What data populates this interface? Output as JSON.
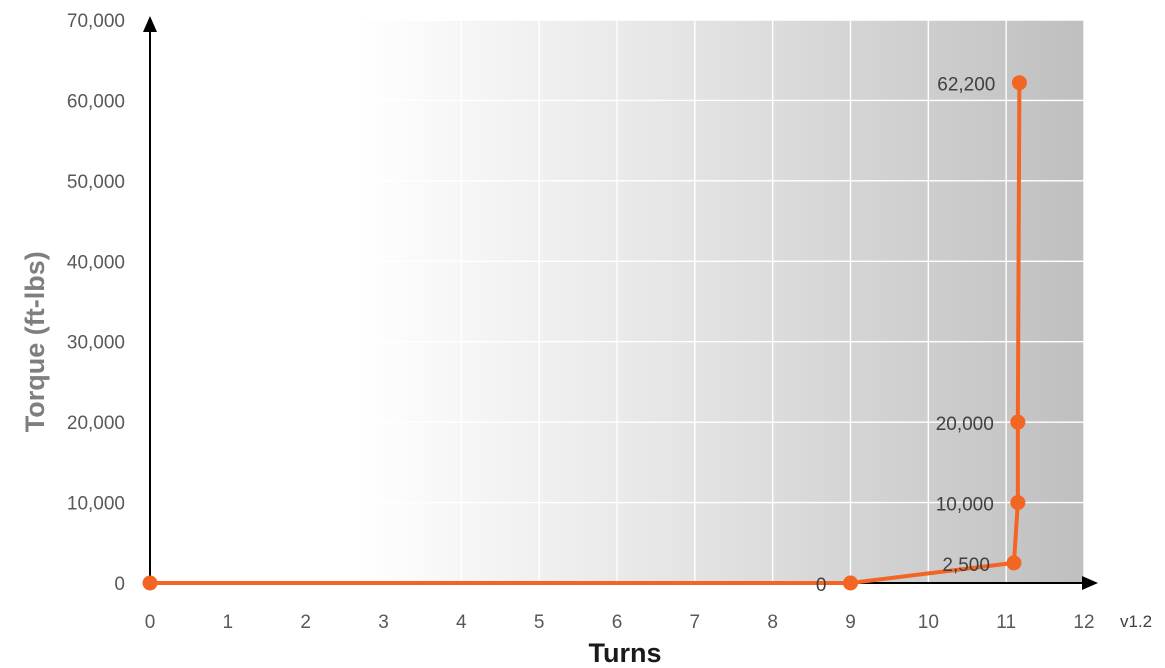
{
  "version_label": "v1.2",
  "chart_data": {
    "type": "line",
    "title": "",
    "xlabel": "Turns",
    "ylabel": "Torque (ft-lbs)",
    "xlim": [
      0,
      12
    ],
    "ylim": [
      0,
      70000
    ],
    "x_ticks": [
      "0",
      "1",
      "2",
      "3",
      "4",
      "5",
      "6",
      "7",
      "8",
      "9",
      "10",
      "11",
      "12"
    ],
    "y_ticks": [
      "0",
      "10,000",
      "20,000",
      "30,000",
      "40,000",
      "50,000",
      "60,000",
      "70,000"
    ],
    "grid": true,
    "series": [
      {
        "color": "#f26522",
        "points": [
          {
            "x": 0,
            "y": 0,
            "label": ""
          },
          {
            "x": 9,
            "y": 0,
            "label": "0"
          },
          {
            "x": 11.1,
            "y": 2500,
            "label": "2,500"
          },
          {
            "x": 11.15,
            "y": 10000,
            "label": "10,000"
          },
          {
            "x": 11.15,
            "y": 20000,
            "label": "20,000"
          },
          {
            "x": 11.17,
            "y": 62200,
            "label": "62,200"
          }
        ]
      }
    ]
  }
}
